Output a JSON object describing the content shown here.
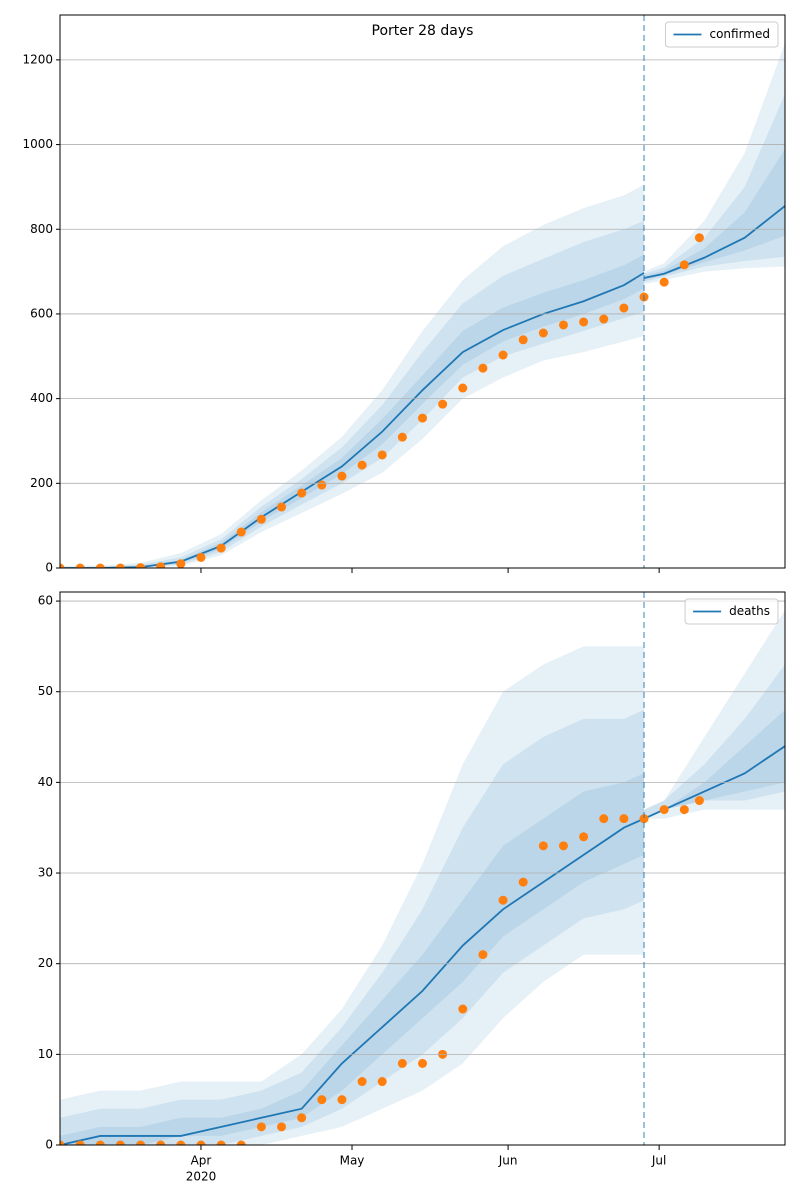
{
  "chart_data": [
    {
      "type": "line",
      "title": "Porter 28 days",
      "line_name": "confirmed",
      "line_color": "#1f77b4",
      "band_color": "#1f77b4",
      "observed_color": "#ff7f0e",
      "fit": {
        "x": [
          64,
          72,
          80,
          88,
          96,
          104,
          112,
          120,
          128,
          136,
          144,
          152,
          160,
          168,
          176,
          180
        ],
        "values": [
          0,
          0,
          2,
          15,
          52,
          120,
          180,
          240,
          322,
          420,
          510,
          562,
          600,
          630,
          668,
          697
        ],
        "bands": [
          {
            "lower": [
              0,
              0,
              0,
              5,
              30,
              85,
              130,
              175,
              225,
              305,
              400,
              450,
              490,
              510,
              535,
              548
            ],
            "upper": [
              4,
              6,
              12,
              35,
              80,
              160,
              230,
              310,
              420,
              560,
              680,
              760,
              810,
              850,
              880,
              905
            ]
          },
          {
            "lower": [
              0,
              0,
              1,
              8,
              38,
              98,
              150,
              200,
              260,
              350,
              450,
              500,
              530,
              560,
              590,
              605
            ],
            "upper": [
              2,
              3,
              8,
              25,
              68,
              145,
              210,
              285,
              385,
              510,
              625,
              690,
              730,
              770,
              800,
              820
            ]
          },
          {
            "lower": [
              0,
              0,
              1,
              11,
              45,
              110,
              165,
              222,
              292,
              388,
              480,
              535,
              570,
              600,
              635,
              660
            ],
            "upper": [
              1,
              1,
              4,
              19,
              60,
              132,
              195,
              260,
              352,
              455,
              560,
              615,
              650,
              680,
              715,
              740
            ]
          }
        ]
      },
      "forecast": {
        "x": [
          180,
          184,
          192,
          200,
          208
        ],
        "values": [
          685,
          695,
          733,
          780,
          855
        ],
        "bands": [
          {
            "lower": [
              670,
              680,
              700,
              708,
              712
            ],
            "upper": [
              700,
              720,
              820,
              980,
              1240
            ]
          },
          {
            "lower": [
              675,
              688,
              712,
              725,
              735
            ],
            "upper": [
              695,
              710,
              780,
              900,
              1120
            ]
          },
          {
            "lower": [
              680,
              692,
              722,
              750,
              785
            ],
            "upper": [
              690,
              702,
              755,
              840,
              990
            ]
          }
        ]
      },
      "observed": {
        "x": [
          64,
          68,
          72,
          76,
          80,
          84,
          88,
          92,
          96,
          100,
          104,
          108,
          112,
          116,
          120,
          124,
          128,
          132,
          136,
          140,
          144,
          148,
          152,
          156,
          160,
          164,
          168,
          172,
          176,
          180,
          184,
          188,
          191
        ],
        "values": [
          0,
          0,
          0,
          0,
          1,
          3,
          10,
          25,
          47,
          85,
          115,
          144,
          177,
          196,
          217,
          243,
          267,
          309,
          354,
          387,
          425,
          472,
          503,
          539,
          555,
          574,
          581,
          588,
          614,
          640,
          675,
          716,
          780
        ]
      },
      "vline": 180,
      "xlim": [
        64,
        208
      ],
      "xticks": [
        92,
        122,
        153,
        183
      ],
      "ylim": [
        0,
        1306
      ],
      "yticks": [
        0,
        200,
        400,
        600,
        800,
        1000,
        1200
      ],
      "grid": true,
      "legend": "upper right"
    },
    {
      "type": "line",
      "line_name": "deaths",
      "line_color": "#1f77b4",
      "band_color": "#1f77b4",
      "observed_color": "#ff7f0e",
      "fit": {
        "x": [
          64,
          72,
          80,
          88,
          96,
          104,
          112,
          120,
          128,
          136,
          144,
          152,
          160,
          168,
          176,
          180
        ],
        "values": [
          0,
          1,
          1,
          1,
          2,
          3,
          4,
          9,
          13,
          17,
          22,
          26,
          29,
          32,
          35,
          36
        ],
        "bands": [
          {
            "lower": [
              0,
              0,
              0,
              0,
              0,
              0,
              1,
              2,
              4,
              6,
              9,
              14,
              18,
              21,
              21,
              21
            ],
            "upper": [
              5,
              6,
              6,
              7,
              7,
              7,
              10,
              15,
              22,
              31,
              42,
              50,
              53,
              55,
              55,
              55
            ]
          },
          {
            "lower": [
              0,
              0,
              0,
              0,
              0,
              1,
              2,
              4,
              7,
              10,
              14,
              19,
              22,
              25,
              26,
              27
            ],
            "upper": [
              3,
              4,
              4,
              5,
              5,
              6,
              8,
              13,
              19,
              26,
              35,
              42,
              45,
              47,
              47,
              48
            ]
          },
          {
            "lower": [
              0,
              0,
              0,
              1,
              1,
              2,
              3,
              6,
              10,
              14,
              18,
              23,
              26,
              29,
              31,
              32
            ],
            "upper": [
              1,
              2,
              2,
              3,
              3,
              4,
              6,
              11,
              16,
              21,
              27,
              33,
              36,
              39,
              40,
              41
            ]
          }
        ]
      },
      "forecast": {
        "x": [
          180,
          184,
          192,
          200,
          208
        ],
        "values": [
          36,
          37,
          39,
          41,
          44
        ],
        "bands": [
          {
            "lower": [
              36,
              36,
              37,
              37,
              37
            ],
            "upper": [
              37,
              38,
              45,
              52,
              59
            ]
          },
          {
            "lower": [
              36,
              37,
              38,
              38,
              39
            ],
            "upper": [
              37,
              38,
              42,
              47,
              53
            ]
          },
          {
            "lower": [
              36,
              37,
              38,
              39,
              40
            ],
            "upper": [
              36,
              37,
              40,
              44,
              48
            ]
          }
        ]
      },
      "observed": {
        "x": [
          64,
          68,
          72,
          76,
          80,
          84,
          88,
          92,
          96,
          100,
          104,
          108,
          112,
          116,
          120,
          124,
          128,
          132,
          136,
          140,
          144,
          148,
          152,
          156,
          160,
          164,
          168,
          172,
          176,
          180,
          184,
          188,
          191
        ],
        "values": [
          0,
          0,
          0,
          0,
          0,
          0,
          0,
          0,
          0,
          0,
          2,
          2,
          3,
          5,
          5,
          7,
          7,
          9,
          9,
          10,
          15,
          21,
          27,
          29,
          33,
          33,
          34,
          36,
          36,
          36,
          37,
          37,
          38
        ]
      },
      "vline": 180,
      "xlim": [
        64,
        208
      ],
      "xticks": [
        {
          "value": 92,
          "label": "Apr"
        },
        {
          "value": 122,
          "label": "May"
        },
        {
          "value": 153,
          "label": "Jun"
        },
        {
          "value": 183,
          "label": "Jul"
        }
      ],
      "x_sublabel": "2020",
      "ylim": [
        0,
        61
      ],
      "yticks": [
        0,
        10,
        20,
        30,
        40,
        50,
        60
      ],
      "grid": true,
      "legend": "upper right"
    }
  ]
}
